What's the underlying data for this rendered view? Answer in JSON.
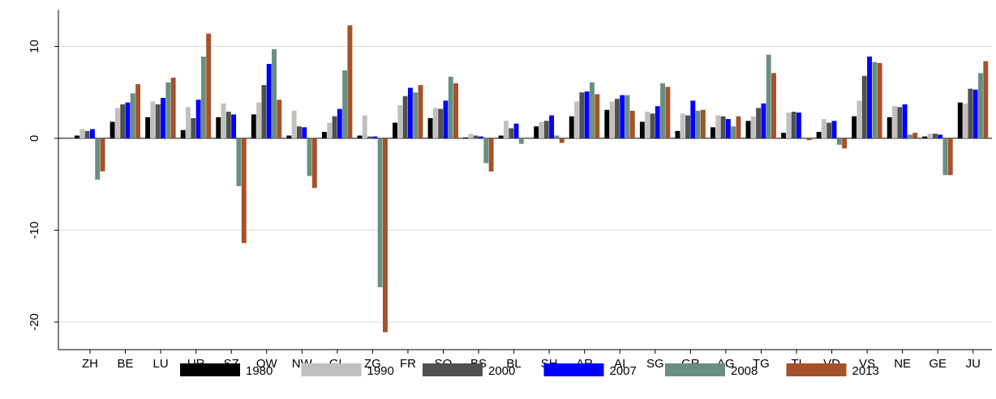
{
  "chart_data": {
    "type": "bar",
    "title": "",
    "xlabel": "",
    "ylabel": "",
    "ylim": [
      -23,
      14
    ],
    "yticks": [
      -20,
      -10,
      0,
      10
    ],
    "grid": true,
    "legend_position": "bottom",
    "categories": [
      "ZH",
      "BE",
      "LU",
      "UR",
      "SZ",
      "OW",
      "NW",
      "GL",
      "ZG",
      "FR",
      "SO",
      "BS",
      "BL",
      "SH",
      "AR",
      "AI",
      "SG",
      "GR",
      "AG",
      "TG",
      "TI",
      "VD",
      "VS",
      "NE",
      "GE",
      "JU"
    ],
    "series": [
      {
        "name": "1980",
        "color": "#000000",
        "values": [
          0.3,
          1.8,
          2.3,
          0.9,
          2.3,
          2.6,
          0.3,
          0.7,
          0.3,
          1.7,
          2.2,
          0.1,
          0.3,
          1.3,
          2.4,
          3.1,
          1.8,
          0.8,
          1.2,
          1.9,
          0.6,
          0.7,
          2.4,
          2.3,
          0.2,
          3.9
        ]
      },
      {
        "name": "1990",
        "color": "#c0c0c0",
        "values": [
          1.0,
          3.3,
          4.0,
          3.4,
          3.8,
          3.9,
          3.0,
          1.7,
          2.5,
          3.6,
          3.3,
          0.5,
          1.9,
          1.8,
          4.0,
          4.0,
          2.9,
          2.7,
          2.5,
          2.4,
          2.8,
          2.1,
          4.1,
          3.5,
          0.5,
          3.8
        ]
      },
      {
        "name": "2000",
        "color": "#505050",
        "values": [
          0.8,
          3.7,
          3.7,
          2.2,
          2.9,
          5.8,
          1.3,
          2.4,
          0.2,
          4.6,
          3.2,
          0.3,
          1.1,
          1.9,
          5.0,
          4.3,
          2.7,
          2.5,
          2.4,
          3.3,
          2.9,
          1.7,
          6.8,
          3.4,
          0.5,
          5.4
        ]
      },
      {
        "name": "2007",
        "color": "#0000ff",
        "values": [
          1.0,
          3.9,
          4.4,
          4.2,
          2.6,
          8.1,
          1.2,
          3.2,
          0.2,
          5.5,
          4.1,
          0.2,
          1.6,
          2.5,
          5.1,
          4.7,
          3.5,
          4.1,
          2.1,
          3.8,
          2.8,
          1.9,
          8.9,
          3.7,
          0.4,
          5.3
        ]
      },
      {
        "name": "2008",
        "color": "#6a8f80",
        "values": [
          -4.5,
          4.9,
          6.1,
          8.9,
          -5.2,
          9.7,
          -4.1,
          7.4,
          -16.2,
          5.0,
          6.7,
          -2.7,
          -0.6,
          0.3,
          6.1,
          4.7,
          6.0,
          3.0,
          1.3,
          9.1,
          0.1,
          -0.7,
          8.3,
          0.4,
          -4.0,
          7.1
        ]
      },
      {
        "name": "2013",
        "color": "#a5522c",
        "values": [
          -3.6,
          5.9,
          6.6,
          11.4,
          -11.4,
          4.2,
          -5.4,
          12.3,
          -21.1,
          5.8,
          6.0,
          -3.6,
          0.0,
          -0.5,
          4.8,
          3.0,
          5.6,
          3.1,
          2.4,
          7.1,
          -0.2,
          -1.1,
          8.2,
          0.6,
          -4.0,
          8.4
        ]
      }
    ]
  }
}
